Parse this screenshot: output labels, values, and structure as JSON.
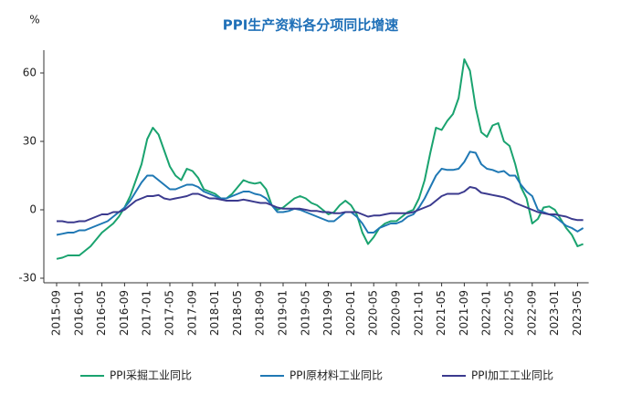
{
  "chart_data": {
    "type": "line",
    "title": "PPI生产资料各分项同比增速",
    "y_label": "%",
    "categories": [
      "2015-09",
      null,
      null,
      null,
      "2016-01",
      null,
      null,
      null,
      "2016-05",
      null,
      null,
      null,
      "2016-09",
      null,
      null,
      null,
      "2017-01",
      null,
      null,
      null,
      "2017-05",
      null,
      null,
      null,
      "2017-09",
      null,
      null,
      null,
      "2018-01",
      null,
      null,
      null,
      "2018-05",
      null,
      null,
      null,
      "2018-09",
      null,
      null,
      null,
      "2019-01",
      null,
      null,
      null,
      "2019-05",
      null,
      null,
      null,
      "2019-09",
      null,
      null,
      null,
      "2020-01",
      null,
      null,
      null,
      "2020-05",
      null,
      null,
      null,
      "2020-09",
      null,
      null,
      null,
      "2021-01",
      null,
      null,
      null,
      "2021-05",
      null,
      null,
      null,
      "2021-09",
      null,
      null,
      null,
      "2022-01",
      null,
      null,
      null,
      "2022-05",
      null,
      null,
      null,
      "2022-09",
      null,
      null,
      null,
      "2023-01",
      null,
      null,
      null,
      "2023-05",
      null
    ],
    "series": [
      {
        "name": "PPI采掘工业同比",
        "color": "#1aa36f",
        "values": [
          -21.5,
          -21,
          -20,
          -20,
          -20,
          -18,
          -16,
          -13,
          -10,
          -8,
          -6,
          -3,
          1,
          6,
          13,
          20,
          31,
          36,
          33,
          26,
          19,
          15,
          13,
          18,
          17,
          14,
          9,
          8,
          7,
          5,
          5,
          7,
          10,
          13,
          12,
          11.5,
          12,
          9,
          2,
          0,
          1,
          3,
          5,
          6,
          5,
          3,
          2,
          0,
          -2,
          -1,
          2,
          4,
          2,
          -2,
          -10,
          -15,
          -12,
          -8,
          -6,
          -5,
          -5,
          -3,
          -1,
          0,
          5,
          13,
          25,
          36,
          35,
          39,
          42,
          49,
          66,
          61,
          45,
          34,
          32,
          37,
          38,
          30,
          28,
          20,
          10,
          5,
          -6,
          -4,
          1,
          1.5,
          0,
          -4,
          -8,
          -11,
          -16,
          -15
        ]
      },
      {
        "name": "PPI原材料工业同比",
        "color": "#1f78b4",
        "values": [
          -11,
          -10.5,
          -10,
          -10,
          -9,
          -9,
          -8,
          -7,
          -6,
          -5,
          -3,
          -1,
          1,
          4,
          8,
          12,
          15,
          15,
          13,
          11,
          9,
          9,
          10,
          11,
          11,
          10,
          8,
          7,
          6,
          5,
          5,
          6,
          7,
          8,
          8,
          7,
          6.5,
          5,
          2,
          -1,
          -1,
          -0.5,
          0.5,
          0,
          -1,
          -2,
          -3,
          -4,
          -5,
          -5,
          -3,
          -1,
          -1,
          -3,
          -6,
          -10,
          -10,
          -8,
          -7,
          -6,
          -6,
          -5,
          -3,
          -2,
          1,
          5,
          10,
          15,
          18,
          17.5,
          17.5,
          18,
          21,
          25.5,
          25,
          20,
          18,
          17.5,
          16.5,
          17,
          15,
          15,
          11,
          8,
          6,
          0,
          -1,
          -2,
          -3,
          -5,
          -7,
          -8,
          -9.5,
          -8
        ]
      },
      {
        "name": "PPI加工工业同比",
        "color": "#3b3a8e",
        "values": [
          -5,
          -5,
          -5.5,
          -5.5,
          -5,
          -5,
          -4,
          -3,
          -2,
          -2,
          -1,
          -1,
          0,
          2,
          4,
          5,
          6,
          6,
          6.5,
          5,
          4.5,
          5,
          5.5,
          6,
          7,
          7,
          6,
          5,
          5,
          4.5,
          4,
          4,
          4,
          4.5,
          4,
          3.5,
          3,
          3,
          2,
          1,
          0.5,
          0.5,
          0.5,
          0.5,
          0,
          -0.5,
          -0.5,
          -1,
          -1,
          -1.5,
          -1.5,
          -1,
          -1,
          -1,
          -2,
          -3,
          -2.5,
          -2.5,
          -2,
          -1.5,
          -1.5,
          -1.5,
          -1.5,
          -1,
          0,
          1,
          2,
          4,
          6,
          7,
          7,
          7,
          8,
          10,
          9.5,
          7.5,
          7,
          6.5,
          6,
          5.5,
          4.5,
          3,
          2,
          1,
          0,
          -1,
          -1.5,
          -2,
          -2,
          -2.5,
          -3,
          -4,
          -4.5,
          -4.5
        ]
      }
    ],
    "ylim": [
      -32,
      70
    ],
    "yticks": [
      60,
      30,
      0,
      -30
    ],
    "grid": false
  }
}
